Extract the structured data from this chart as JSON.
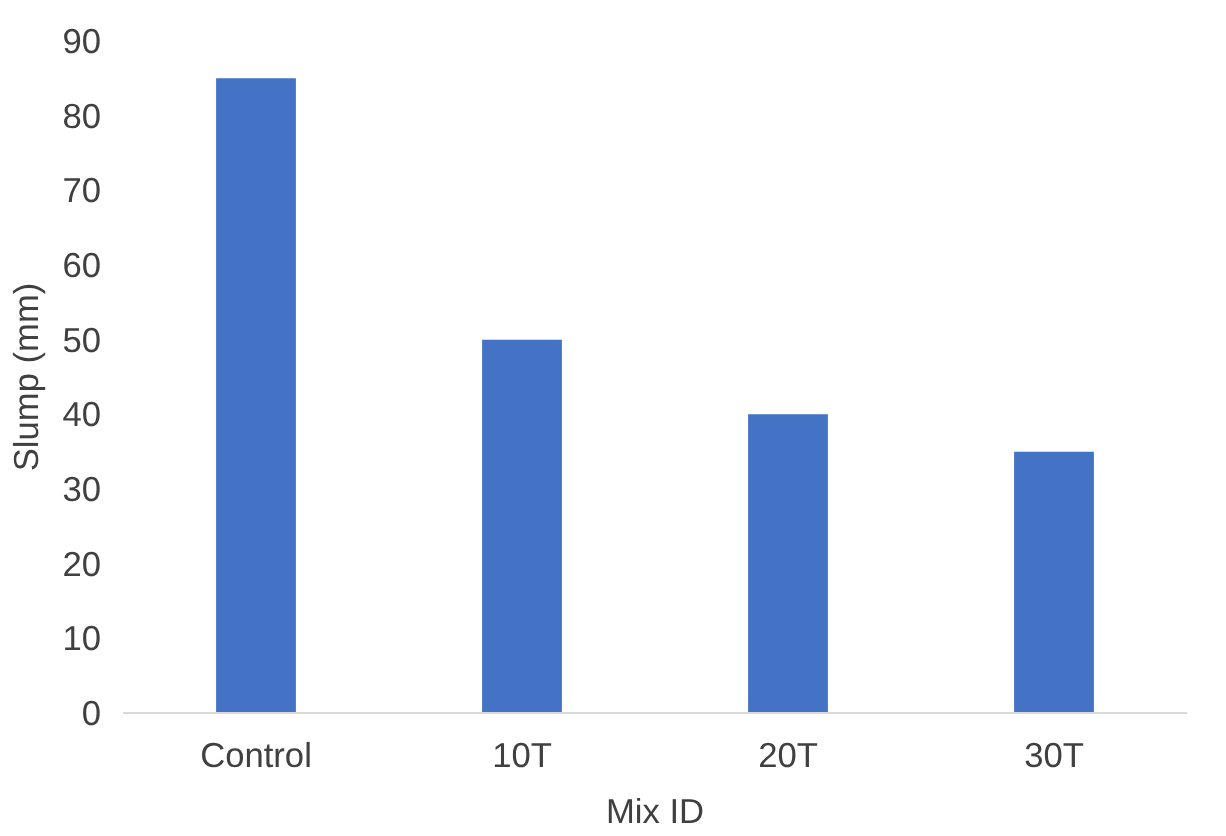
{
  "chart_data": {
    "type": "bar",
    "xlabel": "Mix ID",
    "ylabel": "Slump (mm)",
    "categories": [
      "Control",
      "10T",
      "20T",
      "30T"
    ],
    "values": [
      85,
      50,
      40,
      35
    ],
    "color": "#4472c4",
    "ylim": [
      0,
      90
    ],
    "yticks": [
      0,
      10,
      20,
      30,
      40,
      50,
      60,
      70,
      80,
      90
    ],
    "grid": false
  }
}
